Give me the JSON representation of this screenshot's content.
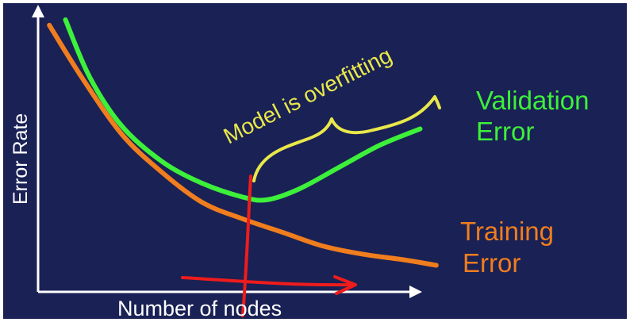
{
  "colors": {
    "background": "#1a2155",
    "axis": "#ffffff",
    "validation": "#3df03a",
    "training": "#f07d1e",
    "annotation": "#e8e84a",
    "marker": "#ee1c1c"
  },
  "chart_data": {
    "type": "line",
    "title": "",
    "xlabel": "Number of nodes",
    "ylabel": "Error Rate",
    "xlim": [
      0,
      10
    ],
    "ylim": [
      0,
      10
    ],
    "grid": false,
    "legend_placement": "right (inline labels)",
    "series": [
      {
        "name": "Validation Error",
        "label_lines": [
          "Validation",
          "Error"
        ],
        "x": [
          0.6,
          1.2,
          2.0,
          3.0,
          4.0,
          5.0,
          5.6,
          6.4,
          7.4,
          8.4,
          9.4
        ],
        "y": [
          9.8,
          7.7,
          5.9,
          4.6,
          3.8,
          3.3,
          3.2,
          3.6,
          4.4,
          5.2,
          5.8
        ]
      },
      {
        "name": "Training Error",
        "label_lines": [
          "Training",
          "Error"
        ],
        "x": [
          0.2,
          1.0,
          2.0,
          3.0,
          4.0,
          5.0,
          6.0,
          7.0,
          8.0,
          9.0,
          9.8
        ],
        "y": [
          9.6,
          7.7,
          5.6,
          4.2,
          3.1,
          2.5,
          2.0,
          1.5,
          1.2,
          1.0,
          0.8
        ]
      }
    ],
    "annotations": [
      {
        "text": "Model is overfitting",
        "type": "brace",
        "x_range": [
          5.3,
          9.0
        ]
      }
    ],
    "marker": {
      "type": "vertical-line-with-arrow",
      "x": 5.2
    }
  }
}
